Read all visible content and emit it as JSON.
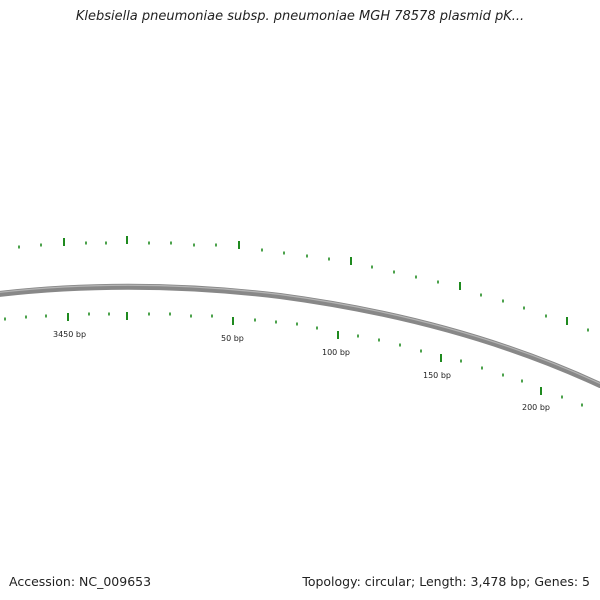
{
  "header": {
    "title": "Klebsiella pneumoniae subsp. pneumoniae MGH 78578 plasmid pK..."
  },
  "map": {
    "backbone_color": "#888888",
    "tick_color": "#1f8a1f",
    "scale_labels": [
      "3450 bp",
      "50 bp",
      "100 bp",
      "150 bp",
      "200 bp"
    ]
  },
  "footer": {
    "accession": "Accession: NC_009653",
    "summary": "Topology: circular; Length: 3,478 bp; Genes: 5"
  }
}
